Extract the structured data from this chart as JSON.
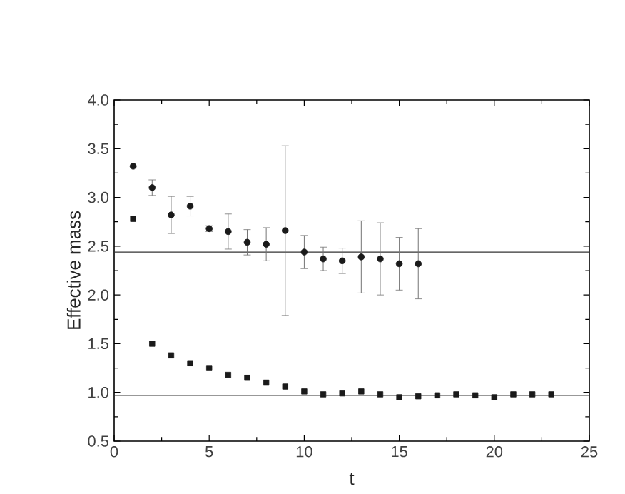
{
  "chart_data": {
    "type": "scatter",
    "xlabel": "t",
    "ylabel": "Effective mass",
    "xlim": [
      0,
      25
    ],
    "xticks": [
      0,
      5,
      10,
      15,
      20,
      25
    ],
    "ylim": [
      0.5,
      4.0
    ],
    "yticks": [
      {
        "value": 0.5,
        "label": "0.5"
      },
      {
        "value": 1.0,
        "label": "1.0"
      },
      {
        "value": 1.5,
        "label": "1.5"
      },
      {
        "value": 2.0,
        "label": "2.0"
      },
      {
        "value": 2.5,
        "label": "2.5"
      },
      {
        "value": 3.0,
        "label": "3.0"
      },
      {
        "value": 3.5,
        "label": "3.5"
      },
      {
        "value": 4.0,
        "label": "4.0"
      }
    ],
    "series": [
      {
        "color": "#1a1a1a",
        "marker": "circle",
        "x": [
          1,
          2,
          3,
          4,
          5,
          6,
          7,
          8,
          9,
          10,
          11,
          12,
          13,
          14,
          15,
          16
        ],
        "values": [
          3.32,
          3.1,
          2.82,
          2.91,
          2.68,
          2.65,
          2.54,
          2.52,
          2.66,
          2.44,
          2.37,
          2.35,
          2.39,
          2.37,
          2.32,
          2.32
        ],
        "errors": [
          null,
          0.08,
          0.19,
          0.1,
          0.03,
          0.18,
          0.13,
          0.17,
          0.87,
          0.17,
          0.12,
          0.13,
          0.37,
          0.37,
          0.27,
          0.36
        ]
      },
      {
        "color": "#1a1a1a",
        "marker": "square",
        "x": [
          1,
          2,
          3,
          4,
          5,
          6,
          7,
          8,
          9,
          10,
          11,
          12,
          13,
          14,
          15,
          16,
          17,
          18,
          19,
          20,
          21,
          22,
          23
        ],
        "values": [
          2.78,
          1.5,
          1.38,
          1.3,
          1.25,
          1.18,
          1.15,
          1.1,
          1.06,
          1.01,
          0.98,
          0.99,
          1.01,
          0.98,
          0.95,
          0.96,
          0.97,
          0.98,
          0.97,
          0.95,
          0.98,
          0.98,
          0.98
        ]
      }
    ],
    "ref_lines": [
      {
        "axis": "y",
        "value": 2.44,
        "color": "#333333"
      },
      {
        "axis": "y",
        "value": 0.97,
        "color": "#333333"
      }
    ],
    "grid": false
  }
}
